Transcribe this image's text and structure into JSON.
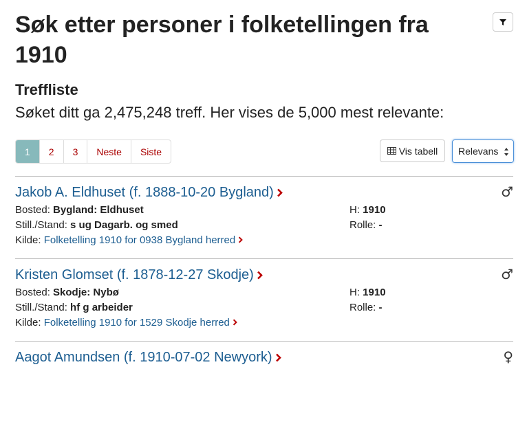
{
  "header": {
    "title": "Søk etter personer i folketellingen fra 1910"
  },
  "results": {
    "heading": "Treffliste",
    "summary": "Søket ditt ga 2,475,248 treff. Her vises de 5,000 mest relevante:"
  },
  "pagination": [
    "1",
    "2",
    "3",
    "Neste",
    "Siste"
  ],
  "controls": {
    "table_button": "Vis tabell",
    "sort": "Relevans"
  },
  "labels": {
    "bosted": "Bosted:",
    "household": "H:",
    "still": "Still./Stand:",
    "rolle": "Rolle:",
    "kilde": "Kilde:"
  },
  "persons": [
    {
      "name": "Jakob A. Eldhuset (f. 1888-10-20 Bygland)",
      "gender": "♂",
      "bosted": "Bygland: Eldhuset",
      "household": "1910",
      "still": "s ug Dagarb. og smed",
      "rolle": "-",
      "kilde": "Folketelling 1910 for 0938 Bygland herred"
    },
    {
      "name": "Kristen Glomset (f. 1878-12-27 Skodje)",
      "gender": "♂",
      "bosted": "Skodje: Nybø",
      "household": "1910",
      "still": "hf g arbeider",
      "rolle": "-",
      "kilde": "Folketelling 1910 for 1529 Skodje herred"
    },
    {
      "name": "Aagot Amundsen (f. 1910-07-02 Newyork)",
      "gender": "♀"
    }
  ]
}
